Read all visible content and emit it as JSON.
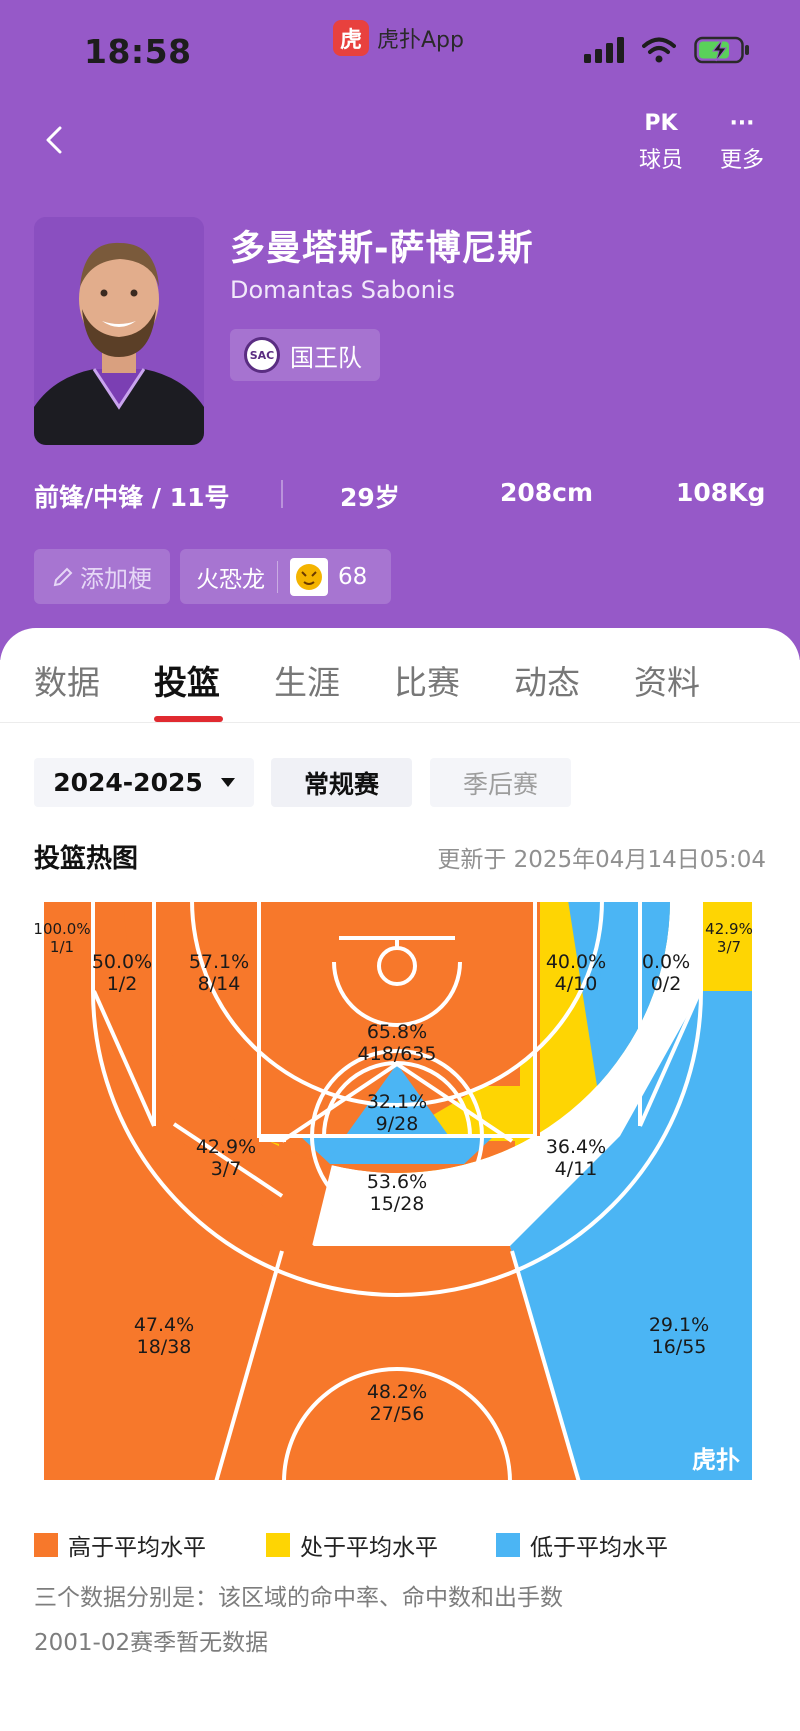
{
  "status_bar": {
    "time": "18:58",
    "app_name": "虎扑App",
    "app_logo_text": "虎"
  },
  "header": {
    "actions": [
      {
        "icon": "pk-icon",
        "label": "球员",
        "icon_text": "PK"
      },
      {
        "icon": "more-dots-icon",
        "label": "更多",
        "icon_text": "···"
      }
    ],
    "player": {
      "name_cn": "多曼塔斯-萨博尼斯",
      "name_en": "Domantas Sabonis",
      "team": "国王队",
      "team_logo_text": "SAC",
      "position_number": "前锋/中锋 / 11号",
      "age": "29岁",
      "height": "208cm",
      "weight": "108Kg"
    },
    "add_tag_label": "添加梗",
    "rating": {
      "label": "火恐龙",
      "value": "68"
    }
  },
  "tabs": [
    "数据",
    "投篮",
    "生涯",
    "比赛",
    "动态",
    "资料"
  ],
  "active_tab": "投篮",
  "filters": {
    "season": "2024-2025",
    "regular": "常规赛",
    "playoff": "季后赛"
  },
  "heatmap": {
    "title": "投篮热图",
    "updated": "更新于 2025年04月14日05:04",
    "watermark": "虎扑",
    "colors": {
      "above": "#f7782b",
      "average": "#fed503",
      "below": "#4bb5f4"
    },
    "zones": [
      {
        "id": "left-corner-three",
        "pct": "100.0%",
        "made": "1/1",
        "level": "above"
      },
      {
        "id": "left-baseline-mid",
        "pct": "50.0%",
        "made": "1/2",
        "level": "above"
      },
      {
        "id": "left-short-mid",
        "pct": "57.1%",
        "made": "8/14",
        "level": "above"
      },
      {
        "id": "paint-restricted",
        "pct": "65.8%",
        "made": "418/635",
        "level": "above"
      },
      {
        "id": "right-short-mid",
        "pct": "40.0%",
        "made": "4/10",
        "level": "average"
      },
      {
        "id": "right-baseline-mid",
        "pct": "0.0%",
        "made": "0/2",
        "level": "below"
      },
      {
        "id": "right-corner-three",
        "pct": "42.9%",
        "made": "3/7",
        "level": "average"
      },
      {
        "id": "paint-non-ra",
        "pct": "32.1%",
        "made": "9/28",
        "level": "below"
      },
      {
        "id": "left-elbow-mid",
        "pct": "42.9%",
        "made": "3/7",
        "level": "average"
      },
      {
        "id": "right-elbow-mid",
        "pct": "36.4%",
        "made": "4/11",
        "level": "average"
      },
      {
        "id": "top-key-mid",
        "pct": "53.6%",
        "made": "15/28",
        "level": "above"
      },
      {
        "id": "left-wing-three",
        "pct": "47.4%",
        "made": "18/38",
        "level": "above"
      },
      {
        "id": "top-three",
        "pct": "48.2%",
        "made": "27/56",
        "level": "above"
      },
      {
        "id": "right-wing-three",
        "pct": "29.1%",
        "made": "16/55",
        "level": "below"
      }
    ]
  },
  "legend": [
    {
      "label": "高于平均水平",
      "color": "#f7782b"
    },
    {
      "label": "处于平均水平",
      "color": "#fed503"
    },
    {
      "label": "低于平均水平",
      "color": "#4bb5f4"
    }
  ],
  "notes": [
    "三个数据分别是：该区域的命中率、命中数和出手数",
    "2001-02赛季暂无数据"
  ]
}
